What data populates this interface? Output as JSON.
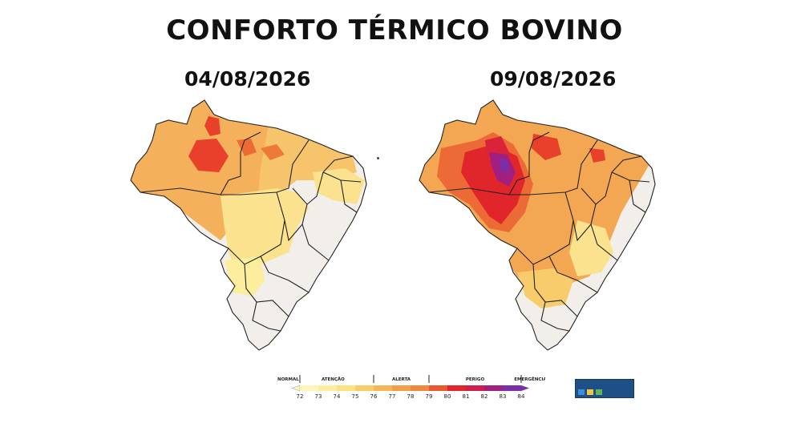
{
  "title": "CONFORTO TÉRMICO BOVINO",
  "maps": [
    {
      "date": "04/08/2026"
    },
    {
      "date": "09/08/2026"
    }
  ],
  "legend": {
    "categories": [
      "NORMAL",
      "ATENÇÃO",
      "ALERTA",
      "PERIGO",
      "EMERGÊNCIA"
    ],
    "ticks": [
      "72",
      "73",
      "74",
      "75",
      "76",
      "77",
      "78",
      "79",
      "80",
      "81",
      "82",
      "83",
      "84"
    ],
    "colors": [
      "#fdf6b8",
      "#fcee9c",
      "#fbe17f",
      "#f8cc6b",
      "#f5b65a",
      "#f29e4c",
      "#ee8740",
      "#e85a2e",
      "#e0262a",
      "#cc1f4d",
      "#a21f82",
      "#7a2ea8"
    ]
  },
  "colors": {
    "state_fill": "#f2efea",
    "outline": "#222222"
  }
}
